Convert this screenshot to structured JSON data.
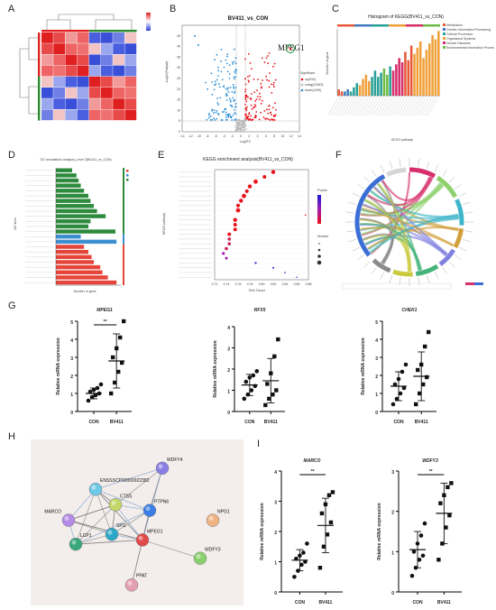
{
  "panels": {
    "A": "A",
    "B": "B",
    "C": "C",
    "D": "D",
    "E": "E",
    "F": "F",
    "G": "G",
    "H": "H",
    "I": "I"
  },
  "volcano": {
    "title": "BV411_vs_CON",
    "xlabel": "Log2FC",
    "ylabel": "-Log10(Padjust)",
    "highlight": "MPEG1",
    "legend_title": "Significant",
    "legend": [
      "up(934)",
      "nosig(22363)",
      "down(1109)"
    ],
    "legend_colors": [
      "#e8141b",
      "#b9b9b9",
      "#2d8fd6"
    ],
    "xticks": [
      "-14",
      "-12",
      "-10",
      "-8",
      "-6",
      "-4",
      "-2",
      "0",
      "2",
      "4",
      "6",
      "8",
      "10",
      "12",
      "14"
    ],
    "yticks": [
      "0",
      "5",
      "10",
      "15",
      "20",
      "25",
      "30",
      "35",
      "40",
      "45"
    ]
  },
  "kegg_hist": {
    "title": "Histogram of KEGG(BV411_vs_CON)",
    "xlabel": "KEGG pathway",
    "ylabel": "Number of gene",
    "legend": [
      "Metabolism",
      "Genetic Information Processing",
      "Cellular Processes",
      "Organismal Systems",
      "Human Diseases",
      "Environmental Information Processing"
    ],
    "legend_colors": [
      "#e8593a",
      "#3f7bbf",
      "#2aa198",
      "#f0a03a",
      "#d62f6b",
      "#6dbb45"
    ],
    "values": [
      3,
      2,
      2,
      3,
      2,
      4,
      6,
      5,
      8,
      10,
      7,
      9,
      12,
      9,
      11,
      13,
      10,
      14,
      12,
      15,
      18,
      16,
      21,
      17,
      24,
      20,
      23,
      26,
      18,
      22,
      25,
      29,
      27,
      31
    ],
    "colors": [
      "#e8593a",
      "#e8593a",
      "#3f7bbf",
      "#3f7bbf",
      "#2aa198",
      "#2aa198",
      "#2aa198",
      "#f0a03a",
      "#f0a03a",
      "#f0a03a",
      "#f0a03a",
      "#2aa198",
      "#2aa198",
      "#2aa198",
      "#2aa198",
      "#6dbb45",
      "#6dbb45",
      "#2aa198",
      "#d62f6b",
      "#d62f6b",
      "#d62f6b",
      "#d62f6b",
      "#e8593a",
      "#e8593a",
      "#e8593a",
      "#f0a03a",
      "#f0a03a",
      "#f0a03a",
      "#f0a03a",
      "#f0a03a",
      "#f0a03a",
      "#f0a03a",
      "#f0a03a",
      "#f0a03a"
    ]
  },
  "go": {
    "title": "GO annotations analysis_Level 2(BV411_vs_CON)",
    "xlabel": "Number of gene",
    "ylabel": "GO term",
    "values": [
      30,
      38,
      42,
      46,
      52,
      60,
      64,
      70,
      76,
      92,
      64,
      60,
      110,
      46,
      112,
      52,
      60,
      66,
      70,
      82,
      86,
      96,
      112
    ],
    "colors": [
      "#2e8b3e",
      "#2e8b3e",
      "#2e8b3e",
      "#2e8b3e",
      "#2e8b3e",
      "#2e8b3e",
      "#2e8b3e",
      "#2e8b3e",
      "#2e8b3e",
      "#2e8b3e",
      "#2e8b3e",
      "#2e8b3e",
      "#2e8b3e",
      "#3c8fd0",
      "#3c8fd0",
      "#e6453a",
      "#e6453a",
      "#e6453a",
      "#e6453a",
      "#e6453a",
      "#e6453a",
      "#e6453a",
      "#e6453a"
    ]
  },
  "kegg_enrich": {
    "title": "KEGG enrichment analysis(BV411_vs_CON)",
    "xlabel": "Rich Factor",
    "ylabel": "KEGG pathway",
    "legend_title": "Pvalue",
    "size_title": "Number",
    "xticks": [
      "0.72",
      "0.74",
      "0.76",
      "0.78",
      "0.80",
      "0.82",
      "0.84",
      "0.86",
      "0.88"
    ],
    "points": [
      {
        "x": 0.82,
        "r": 2.2,
        "c": "#e8141b"
      },
      {
        "x": 0.805,
        "r": 2.0,
        "c": "#e8141b"
      },
      {
        "x": 0.79,
        "r": 2.4,
        "c": "#e8141b"
      },
      {
        "x": 0.78,
        "r": 2.2,
        "c": "#e8141b"
      },
      {
        "x": 0.775,
        "r": 2.0,
        "c": "#e8141b"
      },
      {
        "x": 0.77,
        "r": 2.4,
        "c": "#e8141b"
      },
      {
        "x": 0.765,
        "r": 2.2,
        "c": "#e8141b"
      },
      {
        "x": 0.76,
        "r": 2.0,
        "c": "#e8141b"
      },
      {
        "x": 0.76,
        "r": 2.4,
        "c": "#e8141b"
      },
      {
        "x": 0.875,
        "r": 0.8,
        "c": "#e8141b"
      },
      {
        "x": 0.755,
        "r": 2.2,
        "c": "#e8141b"
      },
      {
        "x": 0.755,
        "r": 2.0,
        "c": "#e8141b"
      },
      {
        "x": 0.755,
        "r": 2.0,
        "c": "#e8141b"
      },
      {
        "x": 0.745,
        "r": 2.0,
        "c": "#e8141b"
      },
      {
        "x": 0.745,
        "r": 1.8,
        "c": "#c81e55"
      },
      {
        "x": 0.745,
        "r": 1.8,
        "c": "#c81e55"
      },
      {
        "x": 0.74,
        "r": 1.8,
        "c": "#c81e55"
      },
      {
        "x": 0.735,
        "r": 1.6,
        "c": "#a31bb0"
      },
      {
        "x": 0.74,
        "r": 1.5,
        "c": "#a31bb0"
      },
      {
        "x": 0.79,
        "r": 1.2,
        "c": "#5a1bd0"
      },
      {
        "x": 0.82,
        "r": 1.0,
        "c": "#2a1bd8"
      },
      {
        "x": 0.84,
        "r": 0.8,
        "c": "#1b1bd8"
      },
      {
        "x": 0.86,
        "r": 0.7,
        "c": "#1b1bd8"
      }
    ]
  },
  "qpcr": {
    "ylabel": "Relative mRNA expression",
    "groups": [
      "CON",
      "BV411"
    ],
    "sig": "**",
    "charts": [
      {
        "title": "MPEG1",
        "ymax": 5,
        "yticks": [
          "0",
          "1",
          "2",
          "3",
          "4",
          "5"
        ],
        "con": [
          0.6,
          0.8,
          0.9,
          1.0,
          1.1,
          1.2,
          1.3,
          1.5
        ],
        "bv": [
          1.0,
          1.6,
          2.2,
          2.7,
          3.0,
          3.5,
          4.1,
          5.0
        ],
        "con_mean": 1.0,
        "con_sd": 0.3,
        "bv_mean": 2.8,
        "bv_sd": 1.5,
        "sig": true
      },
      {
        "title": "RFX5",
        "ymax": 4,
        "yticks": [
          "0",
          "1",
          "2",
          "3",
          "4"
        ],
        "con": [
          0.6,
          0.8,
          1.0,
          1.2,
          1.4,
          1.6,
          1.7,
          1.9
        ],
        "bv": [
          0.3,
          0.6,
          0.8,
          1.0,
          1.3,
          1.8,
          2.6,
          3.4
        ],
        "con_mean": 1.25,
        "con_sd": 0.5,
        "bv_mean": 1.45,
        "bv_sd": 1.05,
        "sig": false
      },
      {
        "title": "CHEK1",
        "ymax": 5,
        "yticks": [
          "0",
          "1",
          "2",
          "3",
          "4",
          "5"
        ],
        "con": [
          0.4,
          0.7,
          1.0,
          1.3,
          1.5,
          1.8,
          2.2,
          2.6
        ],
        "bv": [
          0.4,
          1.0,
          1.5,
          1.9,
          2.3,
          2.6,
          3.6,
          4.4
        ],
        "con_mean": 1.4,
        "con_sd": 0.8,
        "bv_mean": 1.95,
        "bv_sd": 1.35,
        "sig": false
      }
    ],
    "charts_i": [
      {
        "title": "MARCO",
        "ymax": 4,
        "yticks": [
          "0",
          "1",
          "2",
          "3",
          "4"
        ],
        "con": [
          0.5,
          0.7,
          0.9,
          1.0,
          1.1,
          1.2,
          1.3,
          1.6
        ],
        "bv": [
          0.8,
          1.5,
          1.9,
          2.3,
          2.6,
          2.9,
          3.2,
          3.3
        ],
        "con_mean": 1.05,
        "con_sd": 0.35,
        "bv_mean": 2.2,
        "bv_sd": 0.9,
        "sig": true
      },
      {
        "title": "WDFY3",
        "ymax": 3,
        "yticks": [
          "0",
          "1",
          "2",
          "3"
        ],
        "con": [
          0.4,
          0.6,
          0.8,
          0.9,
          1.0,
          1.2,
          1.4,
          1.7
        ],
        "bv": [
          0.8,
          1.2,
          1.6,
          1.9,
          2.2,
          2.4,
          2.6,
          2.7
        ],
        "con_mean": 1.05,
        "con_sd": 0.45,
        "bv_mean": 1.95,
        "bv_sd": 0.75,
        "sig": true
      }
    ]
  },
  "network": {
    "nodes": [
      {
        "label": "ENSSSCP00000022382",
        "color": "#6ec8e6",
        "fx": 0.27,
        "fy": 0.29
      },
      {
        "label": "WDFY4",
        "color": "#8a7ee6",
        "fx": 0.64,
        "fy": 0.14
      },
      {
        "label": "CTSS",
        "color": "#c4d86a",
        "fx": 0.38,
        "fy": 0.4
      },
      {
        "label": "MARCO",
        "color": "#b48ae6",
        "fx": 0.12,
        "fy": 0.51
      },
      {
        "label": "PTPN6",
        "color": "#3c7ee6",
        "fx": 0.57,
        "fy": 0.44
      },
      {
        "label": "NPG1",
        "color": "#f0b484",
        "fx": 0.92,
        "fy": 0.51
      },
      {
        "label": "LCP1",
        "color": "#38a87a",
        "fx": 0.16,
        "fy": 0.68
      },
      {
        "label": "SPI1",
        "color": "#2ea8c8",
        "fx": 0.36,
        "fy": 0.61
      },
      {
        "label": "MPEG1",
        "color": "#e04a4a",
        "fx": 0.53,
        "fy": 0.65
      },
      {
        "label": "WDFY3",
        "color": "#8ad06e",
        "fx": 0.85,
        "fy": 0.78
      },
      {
        "label": "PPAT",
        "color": "#e6a0b4",
        "fx": 0.47,
        "fy": 0.97
      }
    ],
    "edges": [
      [
        0,
        2
      ],
      [
        0,
        4
      ],
      [
        0,
        7
      ],
      [
        0,
        8
      ],
      [
        0,
        3
      ],
      [
        0,
        6
      ],
      [
        1,
        4
      ],
      [
        1,
        8
      ],
      [
        1,
        2
      ],
      [
        2,
        3
      ],
      [
        2,
        4
      ],
      [
        2,
        6
      ],
      [
        2,
        7
      ],
      [
        2,
        8
      ],
      [
        3,
        7
      ],
      [
        3,
        8
      ],
      [
        3,
        6
      ],
      [
        4,
        7
      ],
      [
        4,
        8
      ],
      [
        4,
        6
      ],
      [
        6,
        7
      ],
      [
        6,
        8
      ],
      [
        7,
        8
      ],
      [
        8,
        9
      ],
      [
        8,
        10
      ],
      [
        0,
        1
      ]
    ]
  }
}
